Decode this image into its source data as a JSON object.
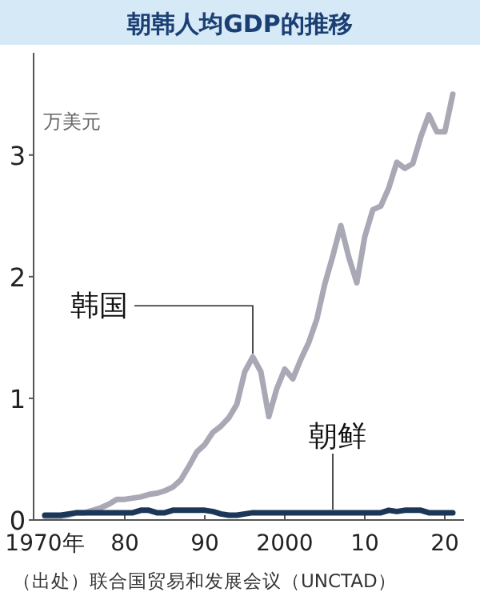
{
  "chart_data": {
    "type": "line",
    "title": "朝韩人均GDP的推移",
    "ylabel": "万美元",
    "xlim": [
      1968.6,
      2022.4
    ],
    "ylim": [
      0,
      3.84
    ],
    "xticks": [
      {
        "value": 1970,
        "label": "1970年"
      },
      {
        "value": 1980,
        "label": "80"
      },
      {
        "value": 1990,
        "label": "90"
      },
      2000,
      {
        "value": 2010,
        "label": "10"
      },
      {
        "value": 2020,
        "label": "20"
      }
    ],
    "yticks": [
      0,
      1,
      2,
      3
    ],
    "grid": false,
    "marker": "none",
    "line_style": "solid",
    "x": [
      1970,
      1971,
      1972,
      1973,
      1974,
      1975,
      1976,
      1977,
      1978,
      1979,
      1980,
      1981,
      1982,
      1983,
      1984,
      1985,
      1986,
      1987,
      1988,
      1989,
      1990,
      1991,
      1992,
      1993,
      1994,
      1995,
      1996,
      1997,
      1998,
      1999,
      2000,
      2001,
      2002,
      2003,
      2004,
      2005,
      2006,
      2007,
      2008,
      2009,
      2010,
      2011,
      2012,
      2013,
      2014,
      2015,
      2016,
      2017,
      2018,
      2019,
      2020,
      2021
    ],
    "series": [
      {
        "color": "#a9a9b6",
        "values": [
          0.03,
          0.03,
          0.03,
          0.04,
          0.06,
          0.06,
          0.08,
          0.1,
          0.13,
          0.17,
          0.17,
          0.18,
          0.19,
          0.21,
          0.22,
          0.24,
          0.27,
          0.33,
          0.44,
          0.56,
          0.62,
          0.72,
          0.77,
          0.84,
          0.95,
          1.22,
          1.34,
          1.22,
          0.85,
          1.08,
          1.24,
          1.16,
          1.32,
          1.46,
          1.65,
          1.94,
          2.17,
          2.42,
          2.16,
          1.95,
          2.33,
          2.55,
          2.58,
          2.73,
          2.94,
          2.89,
          2.93,
          3.15,
          3.33,
          3.19,
          3.19,
          3.5
        ]
      },
      {
        "color": "#1c3658",
        "values": [
          0.04,
          0.04,
          0.04,
          0.05,
          0.06,
          0.06,
          0.06,
          0.06,
          0.06,
          0.06,
          0.06,
          0.06,
          0.08,
          0.08,
          0.06,
          0.06,
          0.08,
          0.08,
          0.08,
          0.08,
          0.08,
          0.07,
          0.05,
          0.04,
          0.04,
          0.05,
          0.06,
          0.06,
          0.06,
          0.06,
          0.06,
          0.06,
          0.06,
          0.06,
          0.06,
          0.06,
          0.06,
          0.06,
          0.06,
          0.06,
          0.06,
          0.06,
          0.06,
          0.08,
          0.07,
          0.08,
          0.08,
          0.08,
          0.06,
          0.06,
          0.06,
          0.06
        ]
      }
    ],
    "annotations": [
      {
        "text": "韩国",
        "x": 1996,
        "y": 1.34
      },
      {
        "text": "朝鲜",
        "x": 2006,
        "y": 0.06
      },
      "（出处）联合国贸易和发展会议（UNCTAD）"
    ]
  }
}
